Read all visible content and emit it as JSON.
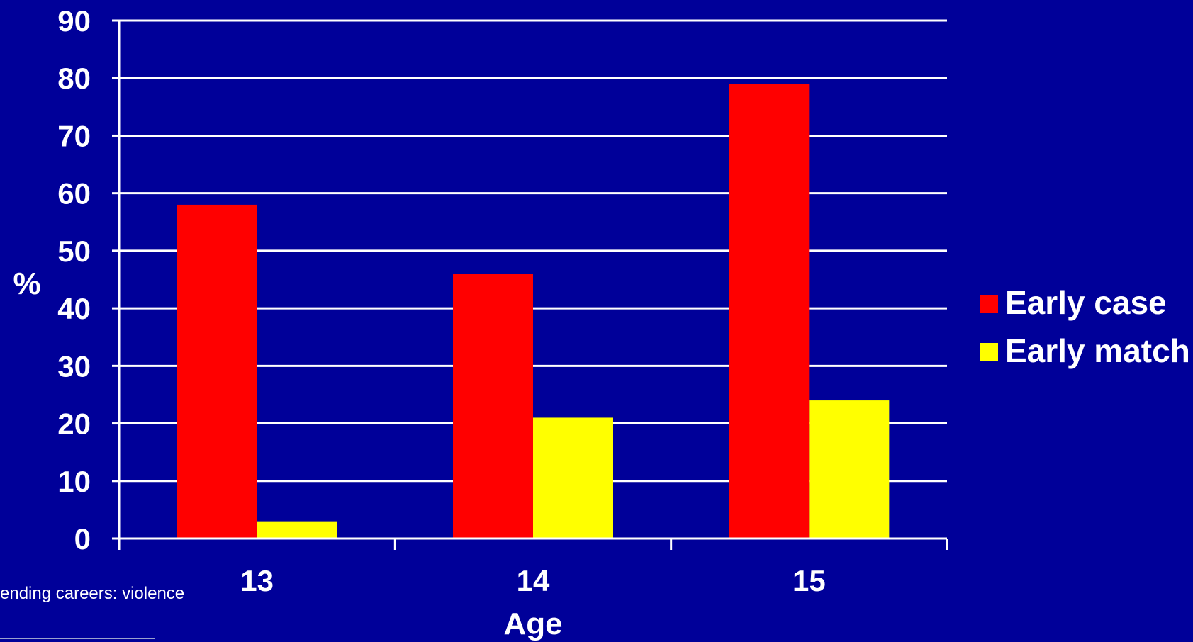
{
  "colors": {
    "background": "#000099",
    "axis": "#ffffff",
    "early_case": "#ff0000",
    "early_match": "#ffff00"
  },
  "footnote": "ending careers: violence",
  "chart_data": {
    "type": "bar",
    "categories": [
      "13",
      "14",
      "15"
    ],
    "series": [
      {
        "name": "Early case",
        "values": [
          58,
          46,
          79
        ],
        "color": "#ff0000"
      },
      {
        "name": "Early match",
        "values": [
          3,
          21,
          24
        ],
        "color": "#ffff00"
      }
    ],
    "xlabel": "Age",
    "ylabel": "%",
    "ylim": [
      0,
      90
    ],
    "yticks": [
      0,
      10,
      20,
      30,
      40,
      50,
      60,
      70,
      80,
      90
    ],
    "grid": true,
    "legend_position": "right"
  }
}
